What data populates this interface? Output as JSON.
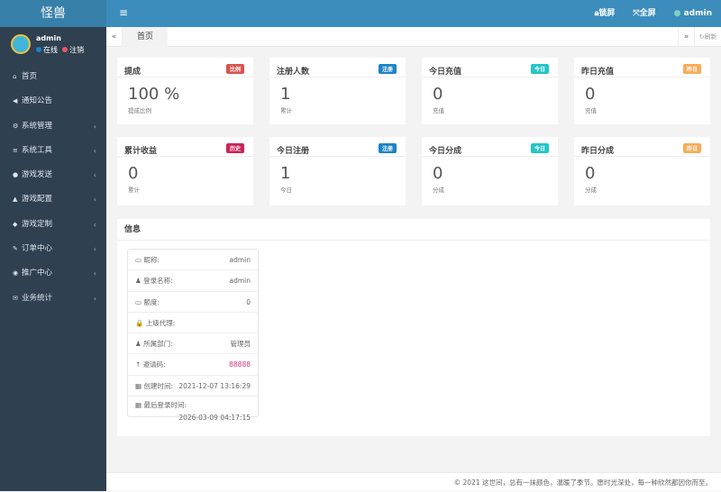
{
  "app": {
    "title": "怪兽"
  },
  "user": {
    "name": "admin",
    "online": "在线",
    "logout": "注销"
  },
  "sidebar": {
    "items": [
      {
        "label": "首页",
        "icon": "home-icon",
        "g": "⌂",
        "sub": false
      },
      {
        "label": "通知公告",
        "icon": "bullhorn-icon",
        "g": "◀",
        "sub": false
      },
      {
        "label": "系统管理",
        "icon": "gear-icon",
        "g": "⚙",
        "sub": true
      },
      {
        "label": "系统工具",
        "icon": "bars-icon",
        "g": "≡",
        "sub": true
      },
      {
        "label": "游戏发送",
        "icon": "gamepad-icon",
        "g": "●",
        "sub": true
      },
      {
        "label": "游戏配置",
        "icon": "cubes-icon",
        "g": "▲",
        "sub": true
      },
      {
        "label": "游戏定制",
        "icon": "cube-icon",
        "g": "◆",
        "sub": true
      },
      {
        "label": "订单中心",
        "icon": "pencil-icon",
        "g": "✎",
        "sub": true
      },
      {
        "label": "推广中心",
        "icon": "eye-icon",
        "g": "◉",
        "sub": true
      },
      {
        "label": "业务统计",
        "icon": "envelope-icon",
        "g": "✉",
        "sub": true
      }
    ]
  },
  "header": {
    "lock": "锁屏",
    "fullscreen": "全屏",
    "user": "admin"
  },
  "tabs": {
    "home": "首页",
    "refresh": "刷新"
  },
  "cards": [
    {
      "title": "提成",
      "badge": "比例",
      "color": "#d9534f",
      "value": "100 %",
      "sub": "提成比例"
    },
    {
      "title": "注册人数",
      "badge": "注册",
      "color": "#1c84c6",
      "value": "1",
      "sub": "累计"
    },
    {
      "title": "今日充值",
      "badge": "今日",
      "color": "#23c6c8",
      "value": "0",
      "sub": "充值"
    },
    {
      "title": "昨日充值",
      "badge": "昨日",
      "color": "#f8ac59",
      "value": "0",
      "sub": "充值"
    },
    {
      "title": "累计收益",
      "badge": "历史",
      "color": "#c9245a",
      "value": "0",
      "sub": "累计"
    },
    {
      "title": "今日注册",
      "badge": "注册",
      "color": "#1c84c6",
      "value": "1",
      "sub": "今日"
    },
    {
      "title": "今日分成",
      "badge": "今日",
      "color": "#23c6c8",
      "value": "0",
      "sub": "分成"
    },
    {
      "title": "昨日分成",
      "badge": "昨日",
      "color": "#f8ac59",
      "value": "0",
      "sub": "分成"
    }
  ],
  "info": {
    "title": "信息",
    "rows": [
      {
        "icon": "id-card-icon",
        "g": "▭",
        "label": "昵称:",
        "value": "admin"
      },
      {
        "icon": "user-icon",
        "g": "♟",
        "label": "登录名称:",
        "value": "admin"
      },
      {
        "icon": "credit-card-icon",
        "g": "▭",
        "label": "额度:",
        "value": "0"
      },
      {
        "icon": "lock-icon",
        "g": "🔒",
        "label": "上级代理:",
        "value": ""
      },
      {
        "icon": "users-icon",
        "g": "♟",
        "label": "所属部门:",
        "value": "管理员"
      },
      {
        "icon": "key-icon",
        "g": "↑",
        "label": "邀请码:",
        "value": "88888",
        "accent": "#d63384"
      },
      {
        "icon": "calendar-icon",
        "g": "▦",
        "label": "创建时间:",
        "value": "2021-12-07 13:16:29"
      },
      {
        "icon": "calendar-icon",
        "g": "▦",
        "label": "最后登录时间:",
        "value": "2026-03-09 04:17:15"
      }
    ]
  },
  "footer": "© 2021 这世间，总有一抹颜色，温暖了季节。愿时光深处，每一种欣然都因你而至。"
}
